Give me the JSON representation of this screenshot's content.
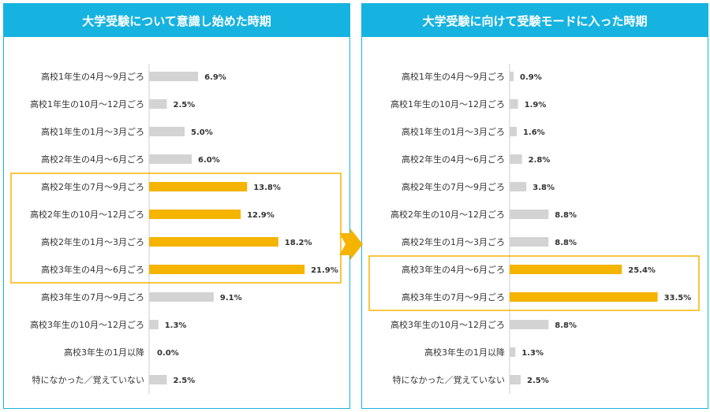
{
  "chart_data": [
    {
      "type": "bar",
      "orientation": "horizontal",
      "title": "大学受験について意識し始めた時期",
      "categories": [
        "高校1年生の4月～9月ごろ",
        "高校1年生の10月～12月ごろ",
        "高校1年生の1月～3月ごろ",
        "高校2年生の4月～6月ごろ",
        "高校2年生の7月～9月ごろ",
        "高校2年生の10月～12月ごろ",
        "高校2年生の1月～3月ごろ",
        "高校3年生の4月～6月ごろ",
        "高校3年生の7月～9月ごろ",
        "高校3年生の10月～12月ごろ",
        "高校3年生の1月以降",
        "特になかった／覚えていない"
      ],
      "values": [
        6.9,
        2.5,
        5.0,
        6.0,
        13.8,
        12.9,
        18.2,
        21.9,
        9.1,
        1.3,
        0.0,
        2.5
      ],
      "value_labels": [
        "6.9%",
        "2.5%",
        "5.0%",
        "6.0%",
        "13.8%",
        "12.9%",
        "18.2%",
        "21.9%",
        "9.1%",
        "1.3%",
        "0.0%",
        "2.5%"
      ],
      "highlighted": [
        4,
        5,
        6,
        7
      ],
      "xlim": [
        0,
        40
      ],
      "grid": false,
      "colors": {
        "normal": "#d3d3d3",
        "highlight": "#f5b400"
      }
    },
    {
      "type": "bar",
      "orientation": "horizontal",
      "title": "大学受験に向けて受験モードに入った時期",
      "categories": [
        "高校1年生の4月～9月ごろ",
        "高校1年生の10月～12月ごろ",
        "高校1年生の1月～3月ごろ",
        "高校2年生の4月～6月ごろ",
        "高校2年生の7月～9月ごろ",
        "高校2年生の10月～12月ごろ",
        "高校2年生の1月～3月ごろ",
        "高校3年生の4月～6月ごろ",
        "高校3年生の7月～9月ごろ",
        "高校3年生の10月～12月ごろ",
        "高校3年生の1月以降",
        "特になかった／覚えていない"
      ],
      "values": [
        0.9,
        1.9,
        1.6,
        2.8,
        3.8,
        8.8,
        8.8,
        25.4,
        33.5,
        8.8,
        1.3,
        2.5
      ],
      "value_labels": [
        "0.9%",
        "1.9%",
        "1.6%",
        "2.8%",
        "3.8%",
        "8.8%",
        "8.8%",
        "25.4%",
        "33.5%",
        "8.8%",
        "1.3%",
        "2.5%"
      ],
      "highlighted": [
        7,
        8
      ],
      "xlim": [
        0,
        40
      ],
      "grid": false,
      "colors": {
        "normal": "#d3d3d3",
        "highlight": "#f5b400"
      }
    }
  ],
  "theme": {
    "header": "#17b3e0",
    "arrow": "#f5b400"
  }
}
